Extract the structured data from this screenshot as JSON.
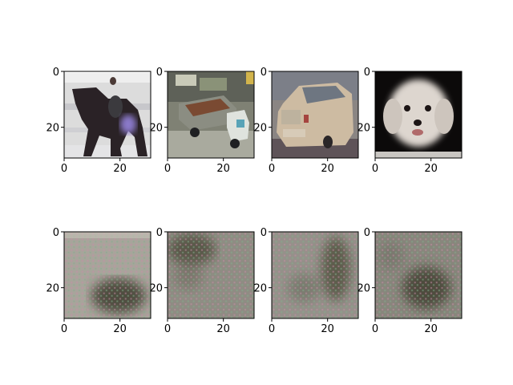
{
  "colors": {
    "background": "#ffffff",
    "axis": "#000000",
    "grid_dot_a": "#c98aa7",
    "grid_dot_b": "#7fb08c"
  },
  "chart_data": [
    {
      "type": "heatmap",
      "content": "horse-and-rider-photo",
      "x_ticks": [
        "0",
        "20"
      ],
      "y_ticks": [
        "0",
        "20"
      ],
      "xlim": [
        0,
        31
      ],
      "ylim": [
        31,
        0
      ],
      "grid": false
    },
    {
      "type": "heatmap",
      "content": "dump-truck-photo",
      "x_ticks": [
        "0",
        "20"
      ],
      "y_ticks": [
        "0",
        "20"
      ],
      "xlim": [
        0,
        31
      ],
      "ylim": [
        31,
        0
      ],
      "grid": false
    },
    {
      "type": "heatmap",
      "content": "car-photo",
      "x_ticks": [
        "0",
        "20"
      ],
      "y_ticks": [
        "0",
        "20"
      ],
      "xlim": [
        0,
        31
      ],
      "ylim": [
        31,
        0
      ],
      "grid": false
    },
    {
      "type": "heatmap",
      "content": "white-dog-photo",
      "x_ticks": [
        "0",
        "20"
      ],
      "y_ticks": [
        "0",
        "20"
      ],
      "xlim": [
        0,
        31
      ],
      "ylim": [
        31,
        0
      ],
      "grid": false
    },
    {
      "type": "heatmap",
      "content": "blurred-reconstruction",
      "x_ticks": [
        "0",
        "20"
      ],
      "y_ticks": [
        "0",
        "20"
      ],
      "xlim": [
        0,
        31
      ],
      "ylim": [
        31,
        0
      ],
      "grid": false
    },
    {
      "type": "heatmap",
      "content": "blurred-reconstruction",
      "x_ticks": [
        "0",
        "20"
      ],
      "y_ticks": [
        "0",
        "20"
      ],
      "xlim": [
        0,
        31
      ],
      "ylim": [
        31,
        0
      ],
      "grid": false
    },
    {
      "type": "heatmap",
      "content": "blurred-reconstruction",
      "x_ticks": [
        "0",
        "20"
      ],
      "y_ticks": [
        "0",
        "20"
      ],
      "xlim": [
        0,
        31
      ],
      "ylim": [
        31,
        0
      ],
      "grid": false
    },
    {
      "type": "heatmap",
      "content": "blurred-reconstruction",
      "x_ticks": [
        "0",
        "20"
      ],
      "y_ticks": [
        "0",
        "20"
      ],
      "xlim": [
        0,
        31
      ],
      "ylim": [
        31,
        0
      ],
      "grid": false
    }
  ]
}
